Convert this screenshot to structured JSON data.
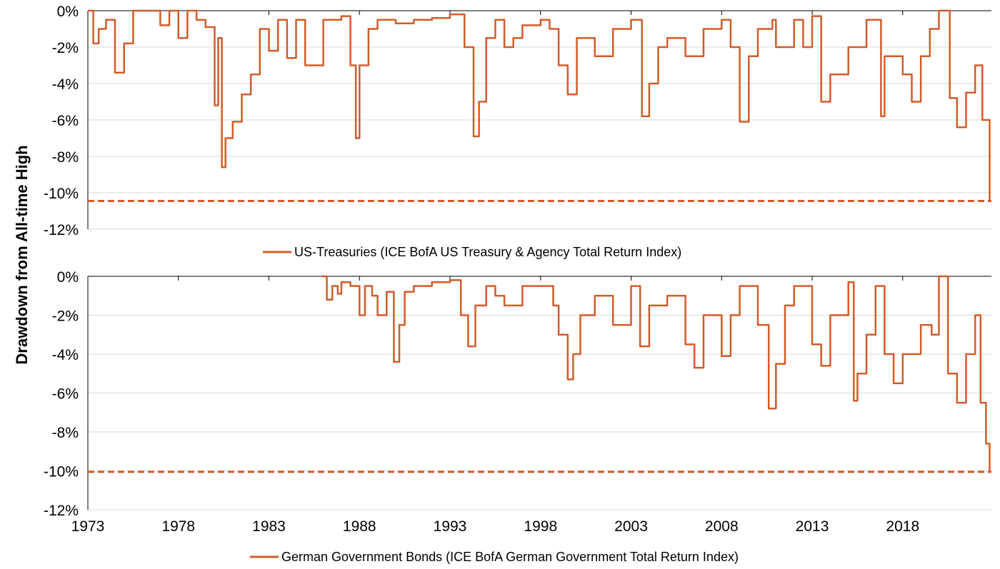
{
  "chart_data": [
    {
      "type": "line",
      "title": "",
      "ylabel": "Drawdown from All-time High",
      "ylim": [
        -12,
        0
      ],
      "yticks": [
        "0%",
        "-2%",
        "-4%",
        "-6%",
        "-8%",
        "-10%",
        "-12%"
      ],
      "series_color": "#d05c2a",
      "series": [
        {
          "name": "US-Treasuries (ICE BofA US Treasury & Agency Total Return Index)",
          "x": [
            1973.0,
            1973.3,
            1973.6,
            1974.0,
            1974.5,
            1975.0,
            1975.5,
            1976.0,
            1977.0,
            1977.5,
            1978.0,
            1978.5,
            1979.0,
            1979.5,
            1980.0,
            1980.2,
            1980.4,
            1980.6,
            1981.0,
            1981.5,
            1982.0,
            1982.5,
            1983.0,
            1983.5,
            1984.0,
            1984.5,
            1985.0,
            1986.0,
            1987.0,
            1987.5,
            1987.8,
            1988.0,
            1988.5,
            1989.0,
            1990.0,
            1991.0,
            1992.0,
            1993.0,
            1993.8,
            1994.3,
            1994.6,
            1995.0,
            1995.5,
            1996.0,
            1996.5,
            1997.0,
            1998.0,
            1998.5,
            1999.0,
            1999.5,
            2000.0,
            2001.0,
            2002.0,
            2003.0,
            2003.6,
            2004.0,
            2004.5,
            2005.0,
            2006.0,
            2007.0,
            2008.0,
            2008.5,
            2009.0,
            2009.5,
            2010.0,
            2010.8,
            2011.0,
            2012.0,
            2012.5,
            2013.0,
            2013.5,
            2014.0,
            2015.0,
            2016.0,
            2016.8,
            2017.0,
            2018.0,
            2018.5,
            2019.0,
            2019.5,
            2020.0,
            2020.6,
            2021.0,
            2021.5,
            2022.0,
            2022.4,
            2022.8
          ],
          "values": [
            0,
            -1.8,
            -1.0,
            -0.5,
            -3.4,
            -1.8,
            0,
            0,
            -0.8,
            0,
            -1.5,
            0,
            -0.5,
            -0.9,
            -5.2,
            -1.5,
            -8.6,
            -7.0,
            -6.1,
            -4.6,
            -3.5,
            -1.0,
            -2.2,
            -0.5,
            -2.6,
            -0.5,
            -3.0,
            -0.5,
            -0.3,
            -3.0,
            -7.0,
            -3.0,
            -1.0,
            -0.5,
            -0.7,
            -0.5,
            -0.4,
            -0.2,
            -2.0,
            -6.9,
            -5.0,
            -1.5,
            -0.5,
            -2.0,
            -1.5,
            -0.8,
            -0.5,
            -1.0,
            -3.0,
            -4.6,
            -1.5,
            -2.5,
            -1.0,
            -0.5,
            -5.8,
            -4.0,
            -2.0,
            -1.5,
            -2.5,
            -1.0,
            -0.5,
            -2.0,
            -6.1,
            -2.5,
            -1.0,
            -0.5,
            -2.0,
            -0.5,
            -2.0,
            -0.3,
            -5.0,
            -3.5,
            -2.0,
            -0.5,
            -5.8,
            -2.5,
            -3.5,
            -5.0,
            -2.5,
            -1.0,
            0,
            -4.8,
            -6.4,
            -4.5,
            -3.0,
            -6.0,
            -10.5
          ]
        }
      ],
      "reference_line": {
        "y": -10.45,
        "style": "dashed"
      }
    },
    {
      "type": "line",
      "title": "",
      "xlabel": "",
      "ylim": [
        -12,
        0
      ],
      "yticks": [
        "0%",
        "-2%",
        "-4%",
        "-6%",
        "-8%",
        "-10%",
        "-12%"
      ],
      "xticks": [
        "1973",
        "1978",
        "1983",
        "1988",
        "1993",
        "1998",
        "2003",
        "2008",
        "2013",
        "2018"
      ],
      "xlim": [
        1973,
        2022.9
      ],
      "series_color": "#d05c2a",
      "series": [
        {
          "name": "German Government Bonds (ICE BofA German Government Total Return Index)",
          "x": [
            1985.9,
            1986.2,
            1986.5,
            1986.8,
            1987.0,
            1987.5,
            1988.0,
            1988.3,
            1988.7,
            1989.0,
            1989.5,
            1989.9,
            1990.2,
            1990.5,
            1991.0,
            1992.0,
            1993.0,
            1993.6,
            1994.0,
            1994.4,
            1995.0,
            1995.5,
            1996.0,
            1997.0,
            1998.0,
            1998.7,
            1999.0,
            1999.5,
            1999.8,
            2000.2,
            2001.0,
            2002.0,
            2003.0,
            2003.5,
            2004.0,
            2005.0,
            2006.0,
            2006.5,
            2007.0,
            2008.0,
            2008.5,
            2009.0,
            2010.0,
            2010.6,
            2011.0,
            2011.5,
            2012.0,
            2013.0,
            2013.5,
            2014.0,
            2015.0,
            2015.3,
            2015.5,
            2016.0,
            2016.5,
            2017.0,
            2017.5,
            2018.0,
            2019.0,
            2019.6,
            2020.0,
            2020.5,
            2021.0,
            2021.5,
            2022.0,
            2022.3,
            2022.6,
            2022.8
          ],
          "values": [
            0,
            -1.2,
            -0.5,
            -0.9,
            -0.3,
            -0.5,
            -2.0,
            -0.5,
            -1.0,
            -2.0,
            -0.8,
            -4.4,
            -2.5,
            -0.8,
            -0.5,
            -0.3,
            -0.2,
            -2.0,
            -3.6,
            -1.5,
            -0.5,
            -1.0,
            -1.5,
            -0.5,
            -0.5,
            -1.5,
            -3.0,
            -5.3,
            -4.0,
            -2.0,
            -1.0,
            -2.5,
            -0.5,
            -3.6,
            -1.5,
            -1.0,
            -3.5,
            -4.7,
            -2.0,
            -4.1,
            -2.0,
            -0.5,
            -2.5,
            -6.8,
            -4.5,
            -1.5,
            -0.5,
            -3.5,
            -4.6,
            -2.0,
            -0.3,
            -6.4,
            -5.0,
            -3.0,
            -0.5,
            -4.0,
            -5.5,
            -4.0,
            -2.5,
            -3.0,
            0,
            -5.0,
            -6.5,
            -4.0,
            -2.0,
            -6.5,
            -8.6,
            -10.1
          ]
        }
      ],
      "reference_line": {
        "y": -10.05,
        "style": "dashed"
      }
    }
  ]
}
